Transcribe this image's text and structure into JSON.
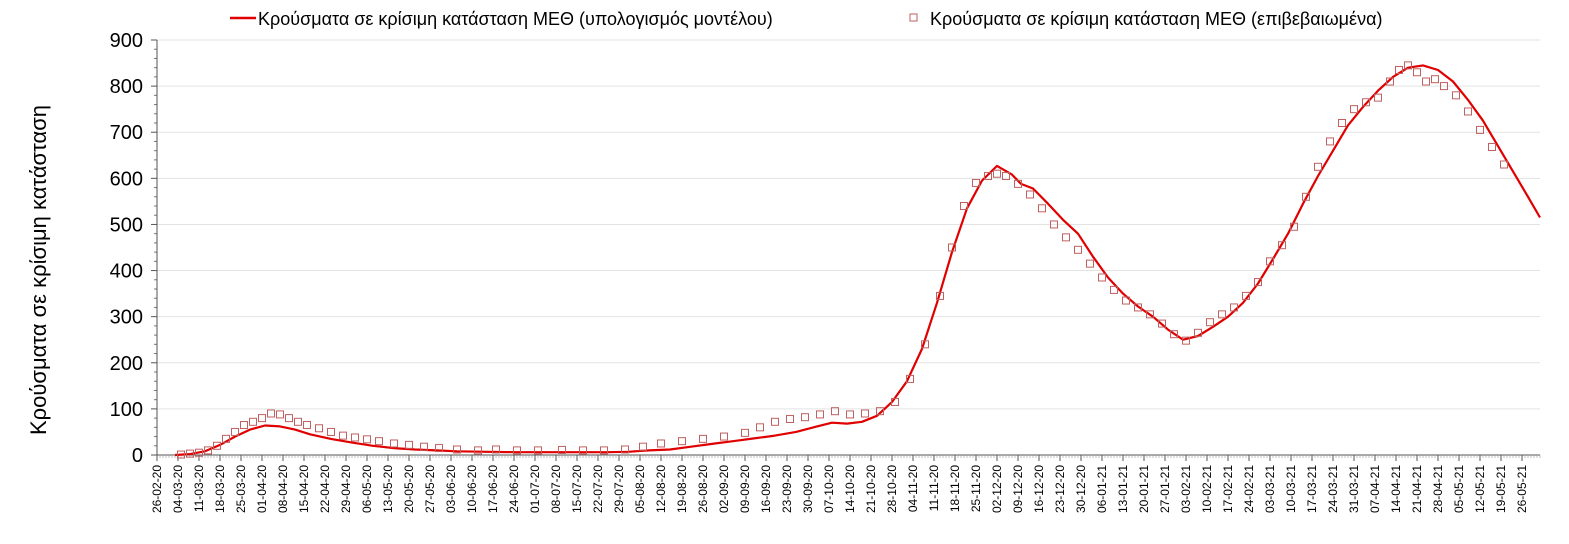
{
  "chart_data": {
    "type": "line",
    "ylabel": "Κρούσματα σε κρίσιμη κατάσταση",
    "ylim": [
      0,
      900
    ],
    "yticks": [
      "0",
      "100",
      "200",
      "300",
      "400",
      "500",
      "600",
      "700",
      "800",
      "900"
    ],
    "xlim": [
      "2020-02-26",
      "2021-06-01"
    ],
    "xtick_labels": [
      "26-02-20",
      "04-03-20",
      "11-03-20",
      "18-03-20",
      "25-03-20",
      "01-04-20",
      "08-04-20",
      "15-04-20",
      "22-04-20",
      "29-04-20",
      "06-05-20",
      "13-05-20",
      "20-05-20",
      "27-05-20",
      "03-06-20",
      "10-06-20",
      "17-06-20",
      "24-06-20",
      "01-07-20",
      "08-07-20",
      "15-07-20",
      "22-07-20",
      "29-07-20",
      "05-08-20",
      "12-08-20",
      "19-08-20",
      "26-08-20",
      "02-09-20",
      "09-09-20",
      "16-09-20",
      "23-09-20",
      "30-09-20",
      "07-10-20",
      "14-10-20",
      "21-10-20",
      "28-10-20",
      "04-11-20",
      "11-11-20",
      "18-11-20",
      "25-11-20",
      "02-12-20",
      "09-12-20",
      "16-12-20",
      "23-12-20",
      "30-12-20",
      "06-01-21",
      "13-01-21",
      "20-01-21",
      "27-01-21",
      "03-02-21",
      "10-02-21",
      "17-02-21",
      "24-02-21",
      "03-03-21",
      "10-03-21",
      "17-03-21",
      "24-03-21",
      "31-03-21",
      "07-04-21",
      "14-04-21",
      "21-04-21",
      "28-04-21",
      "05-05-21",
      "12-05-21",
      "19-05-21",
      "26-05-21"
    ],
    "grid": "horizontal",
    "legend_position": "top",
    "series": [
      {
        "name": "Κρούσματα σε κρίσιμη κατάσταση ΜΕΘ (υπολογισμός μοντέλου)",
        "style": "line",
        "color": "#e00000",
        "points": [
          [
            "2020-03-03",
            0
          ],
          [
            "2020-03-08",
            2
          ],
          [
            "2020-03-13",
            8
          ],
          [
            "2020-03-18",
            22
          ],
          [
            "2020-03-23",
            40
          ],
          [
            "2020-03-28",
            55
          ],
          [
            "2020-04-02",
            64
          ],
          [
            "2020-04-07",
            62
          ],
          [
            "2020-04-12",
            55
          ],
          [
            "2020-04-17",
            45
          ],
          [
            "2020-04-24",
            35
          ],
          [
            "2020-05-01",
            27
          ],
          [
            "2020-05-08",
            20
          ],
          [
            "2020-05-15",
            15
          ],
          [
            "2020-05-22",
            12
          ],
          [
            "2020-05-29",
            10
          ],
          [
            "2020-06-05",
            8
          ],
          [
            "2020-06-15",
            7
          ],
          [
            "2020-06-25",
            6
          ],
          [
            "2020-07-05",
            6
          ],
          [
            "2020-07-15",
            6
          ],
          [
            "2020-07-25",
            6
          ],
          [
            "2020-08-01",
            7
          ],
          [
            "2020-08-08",
            10
          ],
          [
            "2020-08-15",
            12
          ],
          [
            "2020-08-22",
            18
          ],
          [
            "2020-08-29",
            24
          ],
          [
            "2020-09-05",
            30
          ],
          [
            "2020-09-12",
            36
          ],
          [
            "2020-09-19",
            42
          ],
          [
            "2020-09-26",
            50
          ],
          [
            "2020-10-03",
            62
          ],
          [
            "2020-10-08",
            70
          ],
          [
            "2020-10-13",
            68
          ],
          [
            "2020-10-18",
            72
          ],
          [
            "2020-10-23",
            85
          ],
          [
            "2020-10-28",
            115
          ],
          [
            "2020-11-02",
            160
          ],
          [
            "2020-11-07",
            230
          ],
          [
            "2020-11-12",
            330
          ],
          [
            "2020-11-17",
            440
          ],
          [
            "2020-11-22",
            535
          ],
          [
            "2020-11-27",
            595
          ],
          [
            "2020-12-02",
            627
          ],
          [
            "2020-12-07",
            608
          ],
          [
            "2020-12-10",
            588
          ],
          [
            "2020-12-14",
            578
          ],
          [
            "2020-12-19",
            545
          ],
          [
            "2020-12-24",
            510
          ],
          [
            "2020-12-29",
            480
          ],
          [
            "2021-01-03",
            430
          ],
          [
            "2021-01-08",
            385
          ],
          [
            "2021-01-13",
            350
          ],
          [
            "2021-01-18",
            322
          ],
          [
            "2021-01-23",
            300
          ],
          [
            "2021-01-28",
            272
          ],
          [
            "2021-02-02",
            250
          ],
          [
            "2021-02-07",
            258
          ],
          [
            "2021-02-12",
            278
          ],
          [
            "2021-02-17",
            300
          ],
          [
            "2021-02-22",
            330
          ],
          [
            "2021-02-27",
            372
          ],
          [
            "2021-03-04",
            425
          ],
          [
            "2021-03-09",
            480
          ],
          [
            "2021-03-14",
            545
          ],
          [
            "2021-03-19",
            605
          ],
          [
            "2021-03-24",
            660
          ],
          [
            "2021-03-29",
            715
          ],
          [
            "2021-04-03",
            755
          ],
          [
            "2021-04-08",
            790
          ],
          [
            "2021-04-13",
            820
          ],
          [
            "2021-04-18",
            840
          ],
          [
            "2021-04-23",
            845
          ],
          [
            "2021-04-28",
            835
          ],
          [
            "2021-05-03",
            810
          ],
          [
            "2021-05-08",
            770
          ],
          [
            "2021-05-13",
            725
          ],
          [
            "2021-05-18",
            670
          ],
          [
            "2021-05-23",
            615
          ],
          [
            "2021-05-28",
            560
          ],
          [
            "2021-06-01",
            515
          ]
        ]
      },
      {
        "name": "Κρούσματα σε κρίσιμη κατάσταση ΜΕΘ (επιβεβαιωμένα)",
        "style": "markers",
        "marker": "square",
        "color": "#c06060",
        "points": [
          [
            "2020-03-05",
            1
          ],
          [
            "2020-03-08",
            3
          ],
          [
            "2020-03-11",
            5
          ],
          [
            "2020-03-14",
            10
          ],
          [
            "2020-03-17",
            20
          ],
          [
            "2020-03-20",
            35
          ],
          [
            "2020-03-23",
            50
          ],
          [
            "2020-03-26",
            65
          ],
          [
            "2020-03-29",
            72
          ],
          [
            "2020-04-01",
            80
          ],
          [
            "2020-04-04",
            90
          ],
          [
            "2020-04-07",
            88
          ],
          [
            "2020-04-10",
            80
          ],
          [
            "2020-04-13",
            72
          ],
          [
            "2020-04-16",
            65
          ],
          [
            "2020-04-20",
            58
          ],
          [
            "2020-04-24",
            50
          ],
          [
            "2020-04-28",
            42
          ],
          [
            "2020-05-02",
            38
          ],
          [
            "2020-05-06",
            34
          ],
          [
            "2020-05-10",
            30
          ],
          [
            "2020-05-15",
            25
          ],
          [
            "2020-05-20",
            22
          ],
          [
            "2020-05-25",
            18
          ],
          [
            "2020-05-30",
            15
          ],
          [
            "2020-06-05",
            12
          ],
          [
            "2020-06-12",
            10
          ],
          [
            "2020-06-18",
            12
          ],
          [
            "2020-06-25",
            10
          ],
          [
            "2020-07-02",
            10
          ],
          [
            "2020-07-10",
            11
          ],
          [
            "2020-07-17",
            10
          ],
          [
            "2020-07-24",
            10
          ],
          [
            "2020-07-31",
            12
          ],
          [
            "2020-08-06",
            18
          ],
          [
            "2020-08-12",
            25
          ],
          [
            "2020-08-19",
            30
          ],
          [
            "2020-08-26",
            35
          ],
          [
            "2020-09-02",
            40
          ],
          [
            "2020-09-09",
            48
          ],
          [
            "2020-09-14",
            60
          ],
          [
            "2020-09-19",
            72
          ],
          [
            "2020-09-24",
            78
          ],
          [
            "2020-09-29",
            82
          ],
          [
            "2020-10-04",
            88
          ],
          [
            "2020-10-09",
            95
          ],
          [
            "2020-10-14",
            88
          ],
          [
            "2020-10-19",
            90
          ],
          [
            "2020-10-24",
            95
          ],
          [
            "2020-10-29",
            115
          ],
          [
            "2020-11-03",
            165
          ],
          [
            "2020-11-08",
            240
          ],
          [
            "2020-11-13",
            345
          ],
          [
            "2020-11-17",
            450
          ],
          [
            "2020-11-21",
            540
          ],
          [
            "2020-11-25",
            590
          ],
          [
            "2020-11-29",
            605
          ],
          [
            "2020-12-02",
            610
          ],
          [
            "2020-12-05",
            605
          ],
          [
            "2020-12-09",
            588
          ],
          [
            "2020-12-13",
            565
          ],
          [
            "2020-12-17",
            535
          ],
          [
            "2020-12-21",
            500
          ],
          [
            "2020-12-25",
            472
          ],
          [
            "2020-12-29",
            445
          ],
          [
            "2021-01-02",
            415
          ],
          [
            "2021-01-06",
            385
          ],
          [
            "2021-01-10",
            358
          ],
          [
            "2021-01-14",
            335
          ],
          [
            "2021-01-18",
            320
          ],
          [
            "2021-01-22",
            305
          ],
          [
            "2021-01-26",
            285
          ],
          [
            "2021-01-30",
            262
          ],
          [
            "2021-02-03",
            248
          ],
          [
            "2021-02-07",
            265
          ],
          [
            "2021-02-11",
            288
          ],
          [
            "2021-02-15",
            305
          ],
          [
            "2021-02-19",
            320
          ],
          [
            "2021-02-23",
            345
          ],
          [
            "2021-02-27",
            375
          ],
          [
            "2021-03-03",
            420
          ],
          [
            "2021-03-07",
            455
          ],
          [
            "2021-03-11",
            495
          ],
          [
            "2021-03-15",
            560
          ],
          [
            "2021-03-19",
            625
          ],
          [
            "2021-03-23",
            680
          ],
          [
            "2021-03-27",
            720
          ],
          [
            "2021-03-31",
            750
          ],
          [
            "2021-04-04",
            765
          ],
          [
            "2021-04-08",
            775
          ],
          [
            "2021-04-12",
            810
          ],
          [
            "2021-04-15",
            835
          ],
          [
            "2021-04-18",
            845
          ],
          [
            "2021-04-21",
            830
          ],
          [
            "2021-04-24",
            810
          ],
          [
            "2021-04-27",
            815
          ],
          [
            "2021-04-30",
            800
          ],
          [
            "2021-05-04",
            780
          ],
          [
            "2021-05-08",
            745
          ],
          [
            "2021-05-12",
            705
          ],
          [
            "2021-05-16",
            668
          ],
          [
            "2021-05-20",
            630
          ]
        ]
      }
    ]
  }
}
